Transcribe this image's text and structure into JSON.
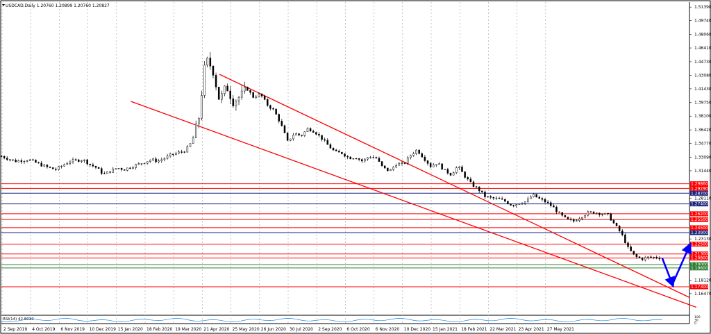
{
  "chart_data": {
    "type": "candlestick",
    "title": "USDCAD,Daily  1.20760 1.20899 1.20760 1.20827",
    "ylim": [
      1.14,
      1.52
    ],
    "y_ticks": [
      "1.51390",
      "1.49740",
      "1.48060",
      "1.46410",
      "1.44730",
      "1.43080",
      "1.41430",
      "1.39750",
      "1.38100",
      "1.36420",
      "1.34770",
      "1.33090",
      "1.31440",
      "1.28110",
      "1.23130",
      "1.18120",
      "1.16470"
    ],
    "x_ticks": [
      "2 Sep 2019",
      "4 Oct 2019",
      "6 Nov 2019",
      "10 Dec 2019",
      "15 Jan 2020",
      "18 Feb 2020",
      "19 Mar 2020",
      "21 Apr 2020",
      "25 May 2020",
      "26 Jun 2020",
      "30 Jul 2020",
      "2 Sep 2020",
      "6 Oct 2020",
      "6 Nov 2020",
      "10 Dec 2020",
      "15 Jan 2021",
      "18 Feb 2021",
      "22 Mar 2021",
      "23 Apr 2021",
      "27 May 2021"
    ],
    "x_range": [
      0,
      101
    ],
    "price_path": [
      [
        0,
        1.332
      ],
      [
        2,
        1.326
      ],
      [
        4,
        1.328
      ],
      [
        6,
        1.321
      ],
      [
        7,
        1.318
      ],
      [
        8,
        1.316
      ],
      [
        10,
        1.326
      ],
      [
        12,
        1.328
      ],
      [
        13,
        1.322
      ],
      [
        14,
        1.318
      ],
      [
        15,
        1.31
      ],
      [
        17,
        1.318
      ],
      [
        18,
        1.316
      ],
      [
        20,
        1.322
      ],
      [
        22,
        1.328
      ],
      [
        23,
        1.326
      ],
      [
        25,
        1.334
      ],
      [
        27,
        1.339
      ],
      [
        28,
        1.35
      ],
      [
        29,
        1.38
      ],
      [
        30,
        1.452
      ],
      [
        31,
        1.438
      ],
      [
        32,
        1.4
      ],
      [
        33,
        1.418
      ],
      [
        34,
        1.398
      ],
      [
        35,
        1.405
      ],
      [
        36,
        1.415
      ],
      [
        37,
        1.404
      ],
      [
        38,
        1.408
      ],
      [
        39,
        1.395
      ],
      [
        40,
        1.388
      ],
      [
        41,
        1.372
      ],
      [
        42,
        1.35
      ],
      [
        43,
        1.36
      ],
      [
        44,
        1.357
      ],
      [
        45,
        1.366
      ],
      [
        46,
        1.362
      ],
      [
        47,
        1.354
      ],
      [
        48,
        1.345
      ],
      [
        49,
        1.337
      ],
      [
        50,
        1.336
      ],
      [
        51,
        1.33
      ],
      [
        52,
        1.331
      ],
      [
        53,
        1.326
      ],
      [
        54,
        1.332
      ],
      [
        55,
        1.33
      ],
      [
        56,
        1.318
      ],
      [
        57,
        1.314
      ],
      [
        58,
        1.323
      ],
      [
        59,
        1.322
      ],
      [
        60,
        1.333
      ],
      [
        61,
        1.34
      ],
      [
        62,
        1.33
      ],
      [
        63,
        1.32
      ],
      [
        64,
        1.324
      ],
      [
        65,
        1.315
      ],
      [
        66,
        1.31
      ],
      [
        67,
        1.32
      ],
      [
        68,
        1.308
      ],
      [
        69,
        1.298
      ],
      [
        70,
        1.292
      ],
      [
        71,
        1.283
      ],
      [
        72,
        1.281
      ],
      [
        73,
        1.28
      ],
      [
        74,
        1.277
      ],
      [
        75,
        1.272
      ],
      [
        76,
        1.275
      ],
      [
        77,
        1.277
      ],
      [
        78,
        1.285
      ],
      [
        79,
        1.28
      ],
      [
        80,
        1.276
      ],
      [
        81,
        1.27
      ],
      [
        82,
        1.261
      ],
      [
        83,
        1.255
      ],
      [
        84,
        1.253
      ],
      [
        85,
        1.258
      ],
      [
        86,
        1.263
      ],
      [
        87,
        1.264
      ],
      [
        88,
        1.262
      ],
      [
        89,
        1.261
      ],
      [
        90,
        1.249
      ],
      [
        91,
        1.238
      ],
      [
        92,
        1.22
      ],
      [
        93,
        1.21
      ],
      [
        94,
        1.207
      ],
      [
        95,
        1.209
      ],
      [
        96,
        1.209
      ],
      [
        97,
        1.208
      ]
    ],
    "channels": [
      {
        "name": "upper-channel",
        "from": [
          32,
          1.432
        ],
        "to": [
          101,
          1.16
        ]
      },
      {
        "name": "lower-channel",
        "from": [
          19,
          1.399
        ],
        "to": [
          102,
          1.148
        ]
      }
    ],
    "horizontal_levels": [
      {
        "label": "1.29860",
        "value": 1.2986,
        "color": "#ff0000",
        "tag_color": "#ff0000"
      },
      {
        "label": "1.29290",
        "value": 1.2929,
        "color": "#ff0000",
        "tag_color": "#ff0000"
      },
      {
        "label": "1.28700",
        "value": 1.287,
        "color": "#1a237e",
        "tag_color": "#1a237e"
      },
      {
        "label": "1.27400",
        "value": 1.274,
        "color": "#1a237e",
        "tag_color": "#1a237e"
      },
      {
        "label": "1.26200",
        "value": 1.262,
        "color": "#ff0000",
        "tag_color": "#ff0000"
      },
      {
        "label": "1.25500",
        "value": 1.255,
        "color": "#ff0000",
        "tag_color": "#ff0000"
      },
      {
        "label": "1.24500",
        "value": 1.245,
        "color": "#ff0000",
        "tag_color": "#ff0000"
      },
      {
        "label": "1.23900",
        "value": 1.239,
        "color": "#1a237e",
        "tag_color": "#1a237e"
      },
      {
        "label": "1.22500",
        "value": 1.225,
        "color": "#ff0000",
        "tag_color": "#ff0000"
      },
      {
        "label": "1.21300",
        "value": 1.213,
        "color": "#ff0000",
        "tag_color": "#ff0000"
      },
      {
        "label": "1.20800",
        "value": 1.208,
        "color": "#ff0000",
        "tag_color": "#ff0000"
      },
      {
        "label": "1.20000",
        "value": 1.2,
        "color": "#2e7d32",
        "tag_color": "#2e7d32"
      },
      {
        "label": "1.19600",
        "value": 1.196,
        "color": "#2e7d32",
        "tag_color": "#2e7d32"
      },
      {
        "label": "1.17300",
        "value": 1.173,
        "color": "#ff0000",
        "tag_color": "#ff0000"
      }
    ],
    "arrows": [
      {
        "from": [
          97,
          1.208
        ],
        "to": [
          98.5,
          1.176
        ]
      },
      {
        "from": [
          98.5,
          1.176
        ],
        "to": [
          101,
          1.223
        ]
      }
    ],
    "indicator": {
      "label": "RSI(14) 42.8030",
      "scale": [
        "100",
        "30",
        "0"
      ]
    },
    "colors": {
      "price": "#000000",
      "channel": "#ff0000",
      "arrow": "#0000ff",
      "grid": "#9e9e9e",
      "rsi": "#1e88e5"
    },
    "grid": true,
    "legend": "none"
  }
}
